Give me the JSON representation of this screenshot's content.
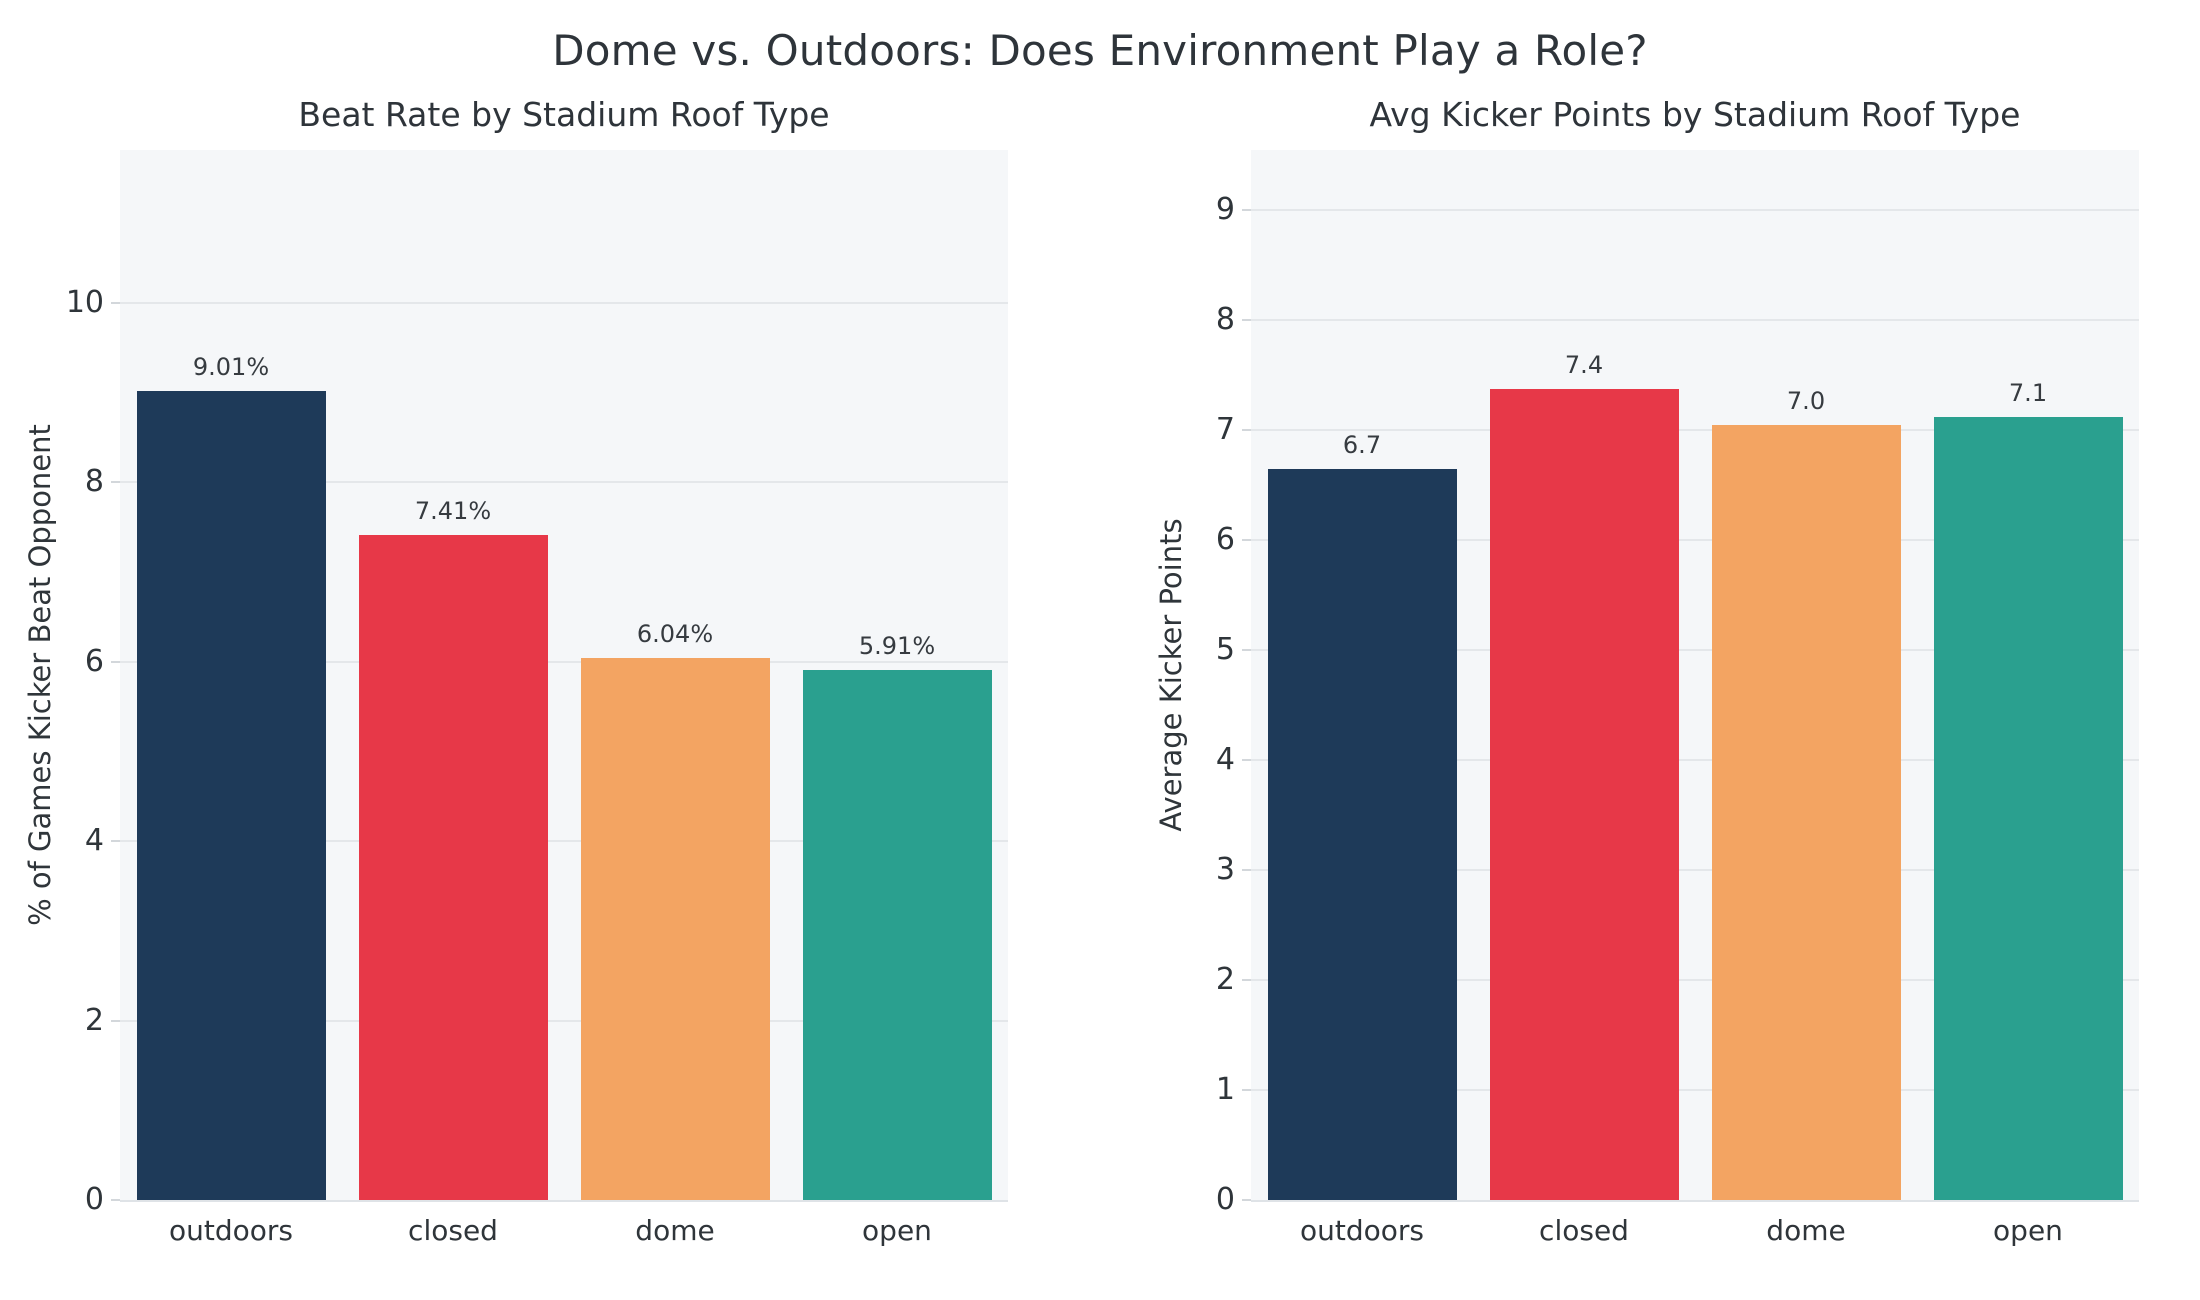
{
  "figure": {
    "title": "Dome vs. Outdoors: Does Environment Play a Role?",
    "background_color": "#ffffff",
    "plot_background_color": "#f5f7f9",
    "gridline_color": "#e4e7ea",
    "text_color": "#2f353a"
  },
  "chart_data": [
    {
      "type": "bar",
      "title": "Beat Rate by Stadium Roof Type",
      "xlabel": "",
      "ylabel": "% of Games Kicker Beat Opponent",
      "categories": [
        "outdoors",
        "closed",
        "dome",
        "open"
      ],
      "values": [
        9.01,
        7.41,
        6.04,
        5.91
      ],
      "bar_labels": [
        "9.01%",
        "7.41%",
        "6.04%",
        "5.91%"
      ],
      "bar_colors": [
        "#1e3a59",
        "#e73848",
        "#f3a462",
        "#2aa08f"
      ],
      "yticks": [
        0,
        2,
        4,
        6,
        8,
        10
      ],
      "ylim": [
        0,
        11.7
      ],
      "grid": true,
      "legend_position": "none"
    },
    {
      "type": "bar",
      "title": "Avg Kicker Points by Stadium Roof Type",
      "xlabel": "",
      "ylabel": "Average Kicker Points",
      "categories": [
        "outdoors",
        "closed",
        "dome",
        "open"
      ],
      "values": [
        6.65,
        7.38,
        7.05,
        7.12
      ],
      "bar_labels": [
        "6.7",
        "7.4",
        "7.0",
        "7.1"
      ],
      "bar_colors": [
        "#1e3a59",
        "#e73848",
        "#f3a462",
        "#2aa08f"
      ],
      "yticks": [
        0,
        1,
        2,
        3,
        4,
        5,
        6,
        7,
        8,
        9
      ],
      "ylim": [
        0,
        9.55
      ],
      "grid": true,
      "legend_position": "none"
    }
  ]
}
